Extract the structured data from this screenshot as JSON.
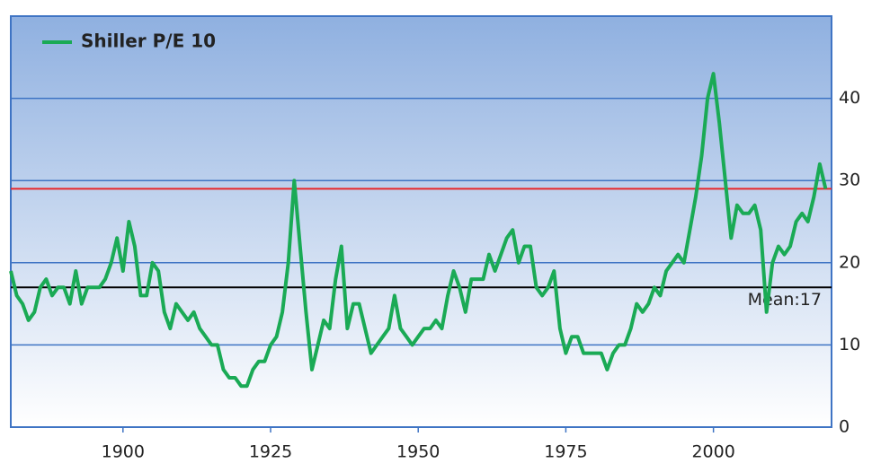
{
  "chart_data": {
    "type": "line",
    "x": [
      1881,
      1882,
      1883,
      1884,
      1885,
      1886,
      1887,
      1888,
      1889,
      1890,
      1891,
      1892,
      1893,
      1894,
      1895,
      1896,
      1897,
      1898,
      1899,
      1900,
      1901,
      1902,
      1903,
      1904,
      1905,
      1906,
      1907,
      1908,
      1909,
      1910,
      1911,
      1912,
      1913,
      1914,
      1915,
      1916,
      1917,
      1918,
      1919,
      1920,
      1921,
      1922,
      1923,
      1924,
      1925,
      1926,
      1927,
      1928,
      1929,
      1930,
      1931,
      1932,
      1933,
      1934,
      1935,
      1936,
      1937,
      1938,
      1939,
      1940,
      1941,
      1942,
      1943,
      1944,
      1945,
      1946,
      1947,
      1948,
      1949,
      1950,
      1951,
      1952,
      1953,
      1954,
      1955,
      1956,
      1957,
      1958,
      1959,
      1960,
      1961,
      1962,
      1963,
      1964,
      1965,
      1966,
      1967,
      1968,
      1969,
      1970,
      1971,
      1972,
      1973,
      1974,
      1975,
      1976,
      1977,
      1978,
      1979,
      1980,
      1981,
      1982,
      1983,
      1984,
      1985,
      1986,
      1987,
      1988,
      1989,
      1990,
      1991,
      1992,
      1993,
      1994,
      1995,
      1996,
      1997,
      1998,
      1999,
      2000,
      2001,
      2002,
      2003,
      2004,
      2005,
      2006,
      2007,
      2008,
      2009,
      2010,
      2011,
      2012,
      2013,
      2014,
      2015,
      2016,
      2017,
      2018,
      2019
    ],
    "series": [
      {
        "name": "Shiller P/E 10",
        "color": "#1aaa55",
        "values": [
          19,
          16,
          15,
          13,
          14,
          17,
          18,
          16,
          17,
          17,
          15,
          19,
          15,
          17,
          17,
          17,
          18,
          20,
          23,
          19,
          25,
          22,
          16,
          16,
          20,
          19,
          14,
          12,
          15,
          14,
          13,
          14,
          12,
          11,
          10,
          10,
          7,
          6,
          6,
          5,
          5,
          7,
          8,
          8,
          10,
          11,
          14,
          20,
          30,
          22,
          14,
          7,
          10,
          13,
          12,
          18,
          22,
          12,
          15,
          15,
          12,
          9,
          10,
          11,
          12,
          16,
          12,
          11,
          10,
          11,
          12,
          12,
          13,
          12,
          16,
          19,
          17,
          14,
          18,
          18,
          18,
          21,
          19,
          21,
          23,
          24,
          20,
          22,
          22,
          17,
          16,
          17,
          19,
          12,
          9,
          11,
          11,
          9,
          9,
          9,
          9,
          7,
          9,
          10,
          10,
          12,
          15,
          14,
          15,
          17,
          16,
          19,
          20,
          21,
          20,
          24,
          28,
          33,
          40,
          43,
          37,
          30,
          23,
          27,
          26,
          26,
          27,
          24,
          14,
          20,
          22,
          21,
          22,
          25,
          26,
          25,
          28,
          32,
          29
        ]
      }
    ],
    "xlim": [
      1881,
      2020
    ],
    "xticks": [
      1900,
      1925,
      1950,
      1975,
      2000
    ],
    "ylim": [
      0,
      50
    ],
    "yticks": [
      0,
      10,
      20,
      30,
      40
    ],
    "mean_line": {
      "value": 17,
      "label": "Mean:17",
      "color": "#000000"
    },
    "current_line": {
      "value": 29,
      "color": "#e8262b"
    },
    "grid": true,
    "legend": "top-left"
  }
}
